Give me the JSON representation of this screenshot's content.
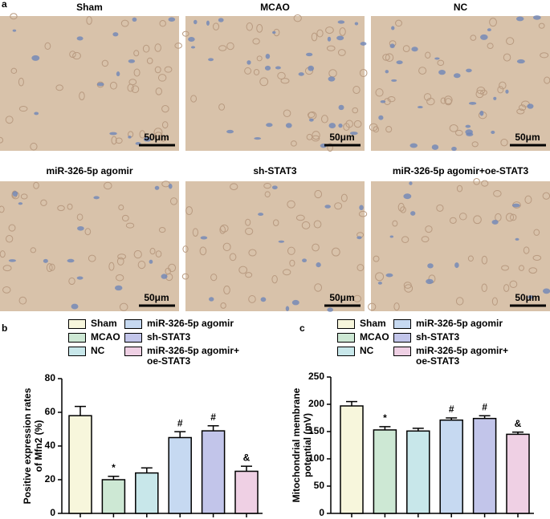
{
  "figure": {
    "panel_labels": [
      "a",
      "b",
      "c"
    ],
    "images": [
      {
        "title": "Sham",
        "scale": "50μm"
      },
      {
        "title": "MCAO",
        "scale": "50μm"
      },
      {
        "title": "NC",
        "scale": "50μm"
      },
      {
        "title": "miR-326-5p agomir",
        "scale": "50μm"
      },
      {
        "title": "sh-STAT3",
        "scale": "50μm"
      },
      {
        "title": "miR-326-5p agomir+oe-STAT3",
        "scale": "50μm"
      }
    ]
  },
  "chart_data": [
    {
      "type": "bar",
      "y_label": [
        "Positive expression rates",
        "of Mfn2 (%)"
      ],
      "categories": [
        "Sham",
        "MCAO",
        "NC",
        "miR-326-5p agomir",
        "sh-STAT3",
        "miR-326-5p agomir+\noe-STAT3"
      ],
      "colors": [
        "#f7f6dc",
        "#cde8d4",
        "#c8e7ea",
        "#c6d9f1",
        "#c2c5ea",
        "#efd0e4"
      ],
      "values": [
        58,
        20,
        24,
        45,
        49,
        25
      ],
      "errors": [
        5.5,
        2,
        3,
        3.5,
        3,
        3
      ],
      "annotations": [
        null,
        "*",
        null,
        "#",
        "#",
        "&"
      ],
      "ylim": [
        0,
        80
      ],
      "yticks": [
        0,
        20,
        40,
        60,
        80
      ]
    },
    {
      "type": "bar",
      "y_label": [
        "Mitochondrial membrane",
        "potential (mV)"
      ],
      "categories": [
        "Sham",
        "MCAO",
        "NC",
        "miR-326-5p agomir",
        "sh-STAT3",
        "miR-326-5p agomir+\noe-STAT3"
      ],
      "colors": [
        "#f7f6dc",
        "#cde8d4",
        "#c8e7ea",
        "#c6d9f1",
        "#c2c5ea",
        "#efd0e4"
      ],
      "values": [
        197,
        153,
        151,
        171,
        174,
        145
      ],
      "errors": [
        8,
        6,
        5,
        4,
        5,
        4
      ],
      "annotations": [
        null,
        "*",
        null,
        "#",
        "#",
        "&"
      ],
      "ylim": [
        0,
        250
      ],
      "yticks": [
        0,
        50,
        100,
        150,
        200,
        250
      ]
    }
  ]
}
